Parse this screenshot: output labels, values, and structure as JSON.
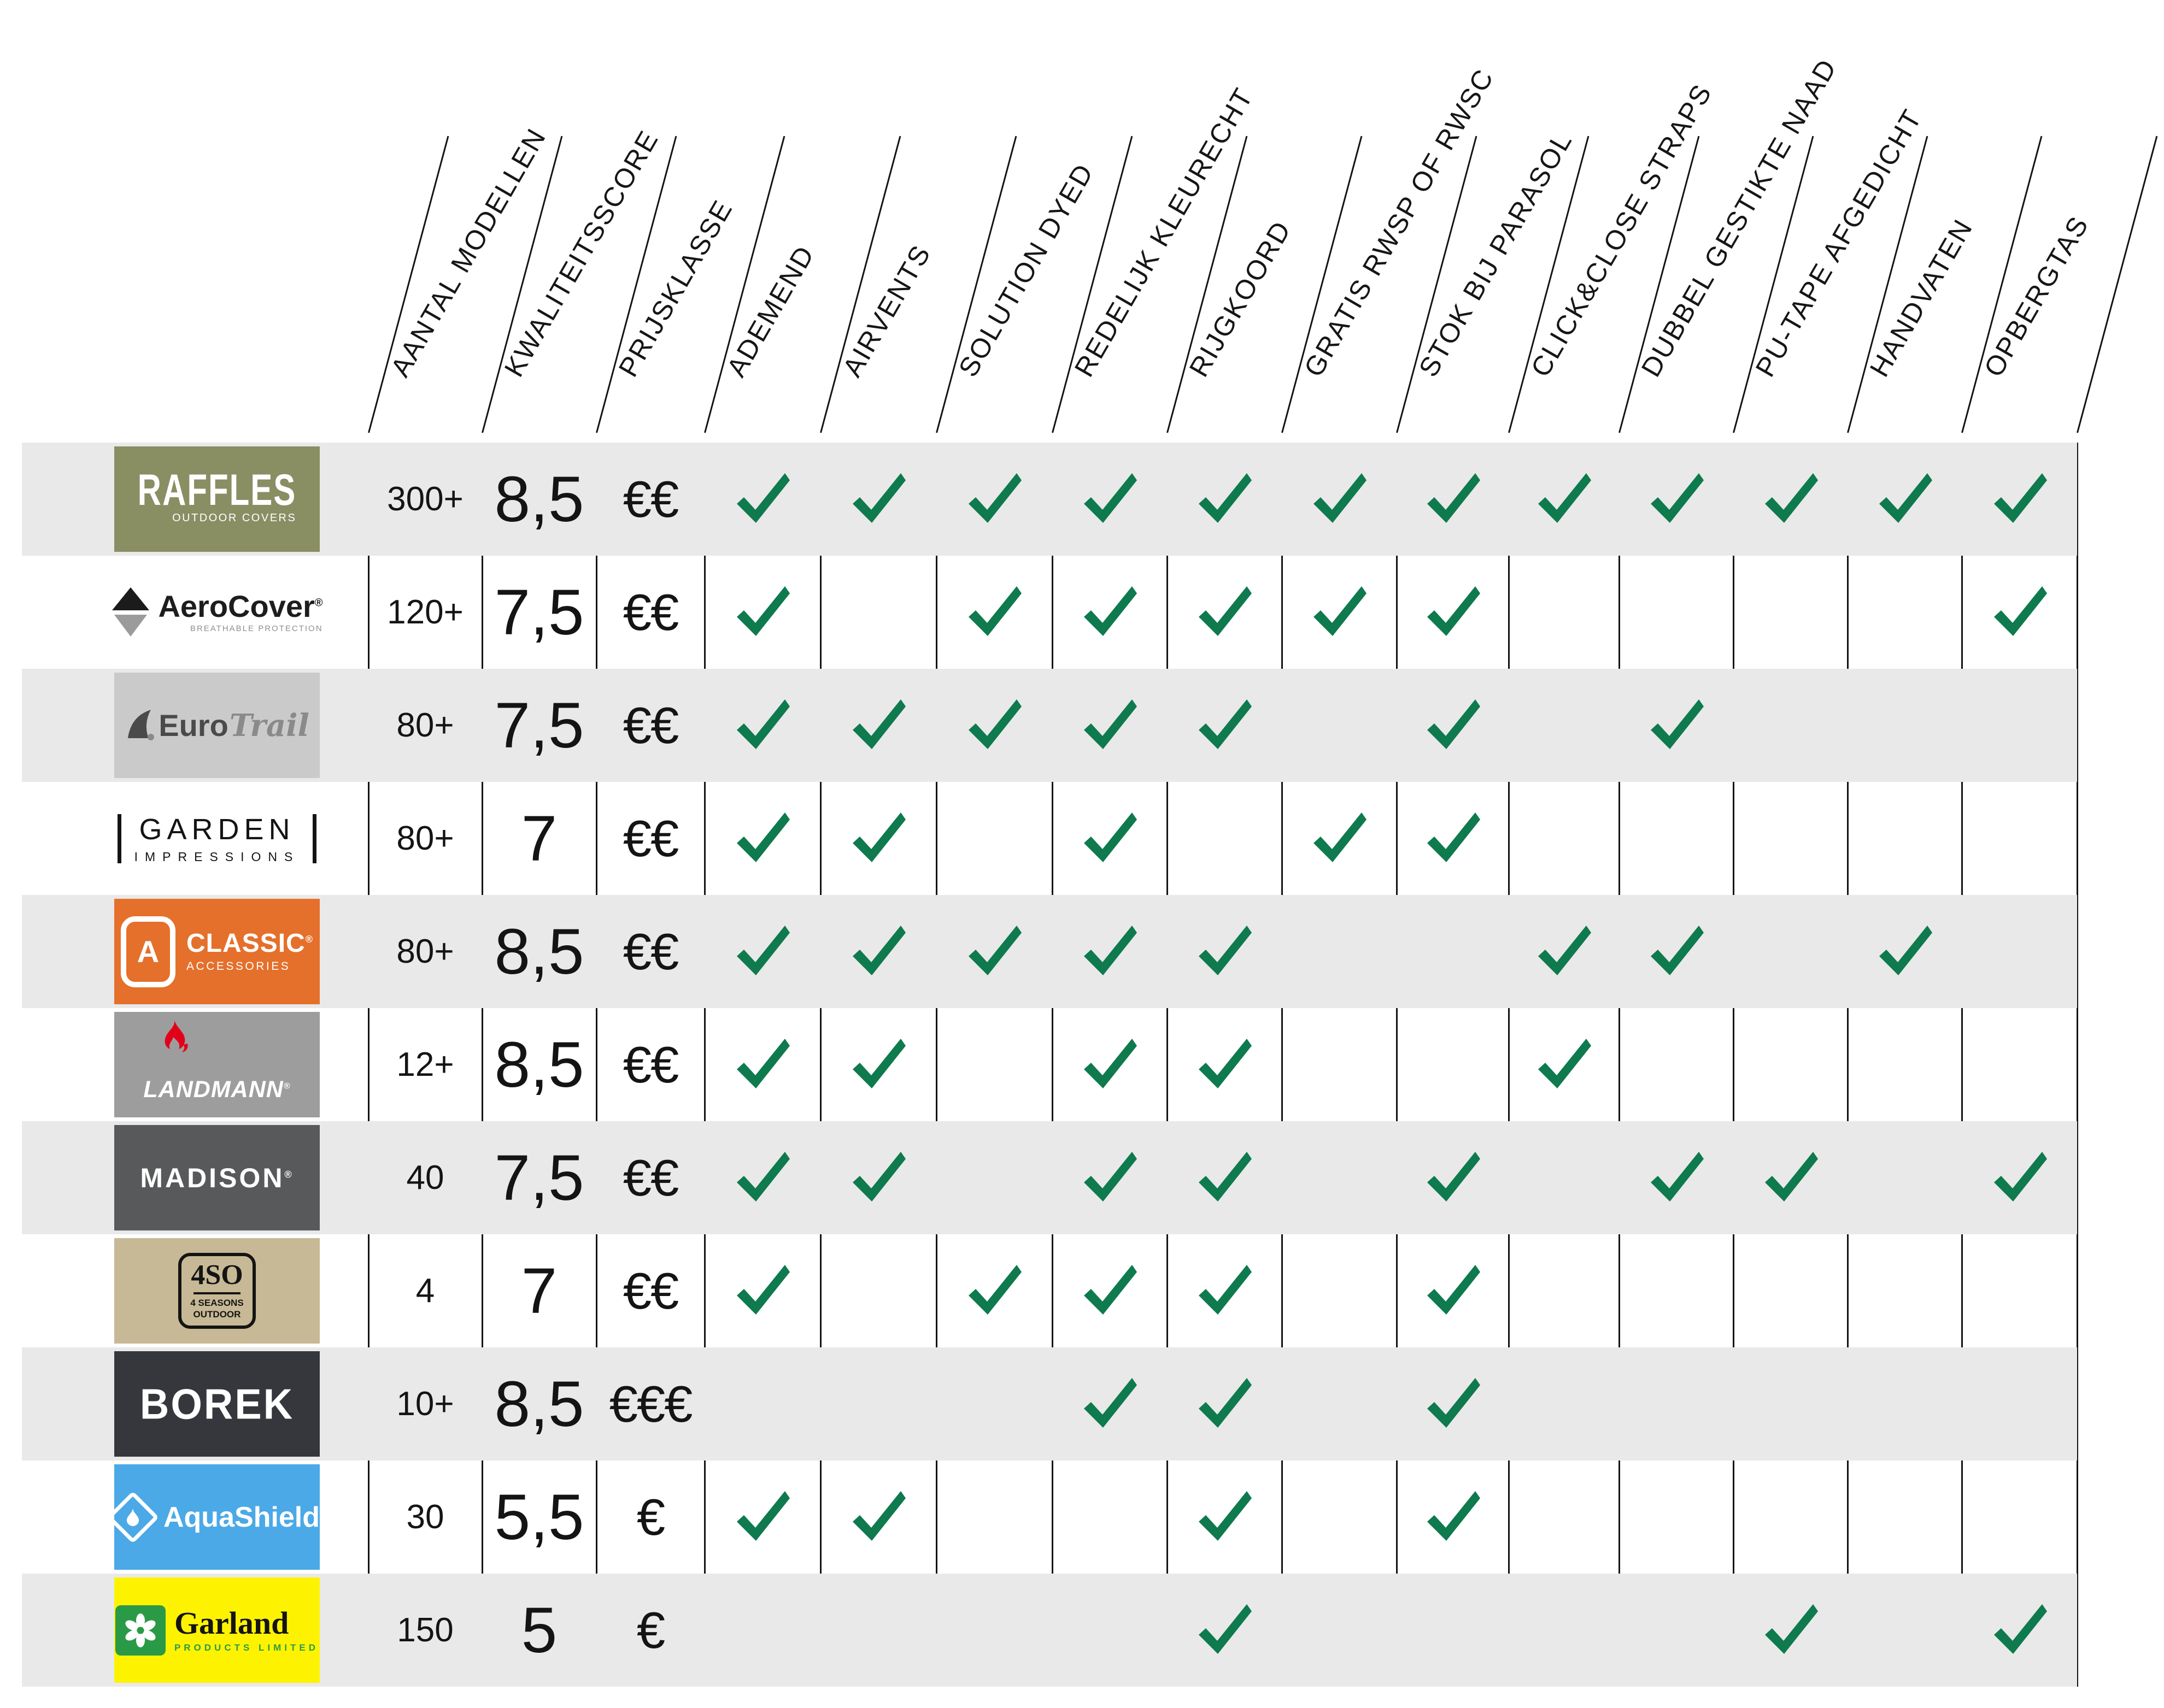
{
  "chart_data": {
    "type": "table",
    "title": "",
    "columns": [
      "AANTAL MODELLEN",
      "KWALITEITSSCORE",
      "PRIJSKLASSE",
      "ADEMEND",
      "AIRVENTS",
      "SOLUTION DYED",
      "REDELIJK KLEURECHT",
      "RIJGKOORD",
      "GRATIS RWSP OF RWSC",
      "STOK BIJ PARASOL",
      "CLICK&CLOSE STRAPS",
      "DUBBEL GESTIKTE NAAD",
      "PU-TAPE AFGEDICHT",
      "HANDVATEN",
      "OPBERGTAS"
    ],
    "feature_columns": [
      "ADEMEND",
      "AIRVENTS",
      "SOLUTION DYED",
      "REDELIJK KLEURECHT",
      "RIJGKOORD",
      "GRATIS RWSP OF RWSC",
      "STOK BIJ PARASOL",
      "CLICK&CLOSE STRAPS",
      "DUBBEL GESTIKTE NAAD",
      "PU-TAPE AFGEDICHT",
      "HANDVATEN",
      "OPBERGTAS"
    ],
    "rows": [
      {
        "brand": "Raffles Outdoor Covers",
        "logo": "raffles",
        "models": "300+",
        "score": "8,5",
        "price": "€€",
        "features": [
          1,
          1,
          1,
          1,
          1,
          1,
          1,
          1,
          1,
          1,
          1,
          1
        ]
      },
      {
        "brand": "AeroCover",
        "logo": "aerocover",
        "models": "120+",
        "score": "7,5",
        "price": "€€",
        "features": [
          1,
          0,
          1,
          1,
          1,
          1,
          1,
          0,
          0,
          0,
          0,
          1
        ]
      },
      {
        "brand": "EuroTrail",
        "logo": "eurotrail",
        "models": "80+",
        "score": "7,5",
        "price": "€€",
        "features": [
          1,
          1,
          1,
          1,
          1,
          0,
          1,
          0,
          1,
          0,
          0,
          0
        ]
      },
      {
        "brand": "Garden Impressions",
        "logo": "garden",
        "models": "80+",
        "score": "7",
        "price": "€€",
        "features": [
          1,
          1,
          0,
          1,
          0,
          1,
          1,
          0,
          0,
          0,
          0,
          0
        ]
      },
      {
        "brand": "Classic Accessories",
        "logo": "classic",
        "models": "80+",
        "score": "8,5",
        "price": "€€",
        "features": [
          1,
          1,
          1,
          1,
          1,
          0,
          0,
          1,
          1,
          0,
          1,
          0
        ]
      },
      {
        "brand": "Landmann",
        "logo": "landmann",
        "models": "12+",
        "score": "8,5",
        "price": "€€",
        "features": [
          1,
          1,
          0,
          1,
          1,
          0,
          0,
          1,
          0,
          0,
          0,
          0
        ]
      },
      {
        "brand": "Madison",
        "logo": "madison",
        "models": "40",
        "score": "7,5",
        "price": "€€",
        "features": [
          1,
          1,
          0,
          1,
          1,
          0,
          1,
          0,
          1,
          1,
          0,
          1
        ]
      },
      {
        "brand": "4 Seasons Outdoor",
        "logo": "fso",
        "models": "4",
        "score": "7",
        "price": "€€",
        "features": [
          1,
          0,
          1,
          1,
          1,
          0,
          1,
          0,
          0,
          0,
          0,
          0
        ]
      },
      {
        "brand": "Borek",
        "logo": "borek",
        "models": "10+",
        "score": "8,5",
        "price": "€€€",
        "features": [
          0,
          0,
          0,
          1,
          1,
          0,
          1,
          0,
          0,
          0,
          0,
          0
        ]
      },
      {
        "brand": "AquaShield",
        "logo": "aquashield",
        "models": "30",
        "score": "5,5",
        "price": "€",
        "features": [
          1,
          1,
          0,
          0,
          1,
          0,
          1,
          0,
          0,
          0,
          0,
          0
        ]
      },
      {
        "brand": "Garland Products Limited",
        "logo": "garland",
        "models": "150",
        "score": "5",
        "price": "€",
        "features": [
          0,
          0,
          0,
          0,
          1,
          0,
          0,
          0,
          0,
          1,
          0,
          1
        ]
      }
    ]
  },
  "colors": {
    "check": "#0e7a4e",
    "row_alt": "#e9e9e9",
    "line": "#141414"
  },
  "logos": {
    "raffles": {
      "name": "RAFFLES",
      "sub": "OUTDOOR COVERS",
      "bg": "#8a8f63"
    },
    "aerocover": {
      "name": "AeroCover",
      "reg": "®",
      "sub": "BREATHABLE PROTECTION"
    },
    "eurotrail": {
      "name1": "Euro",
      "name2": "Trail",
      "bg": "#cacaca"
    },
    "garden": {
      "name": "GARDEN",
      "sub": "IMPRESSIONS"
    },
    "classic": {
      "emblem": "A",
      "name": "CLASSIC",
      "reg": "®",
      "sub": "ACCESSORIES",
      "bg": "#e5702b"
    },
    "landmann": {
      "name": "LANDMANN",
      "reg": "®",
      "bg": "#9d9d9d",
      "flame": "#e2001a"
    },
    "madison": {
      "name": "MADISON",
      "reg": "®",
      "bg": "#58595b"
    },
    "fso": {
      "name": "4SO",
      "sub1": "4 SEASONS",
      "sub2": "OUTDOOR",
      "bg": "#c7b995"
    },
    "borek": {
      "name": "BOREK",
      "bg": "#35373c"
    },
    "aquashield": {
      "name": "AquaShield",
      "bg": "#4ba9e7"
    },
    "garland": {
      "name": "Garland",
      "sub": "PRODUCTS LIMITED",
      "bg": "#fdf301",
      "green": "#2a9a47"
    }
  }
}
